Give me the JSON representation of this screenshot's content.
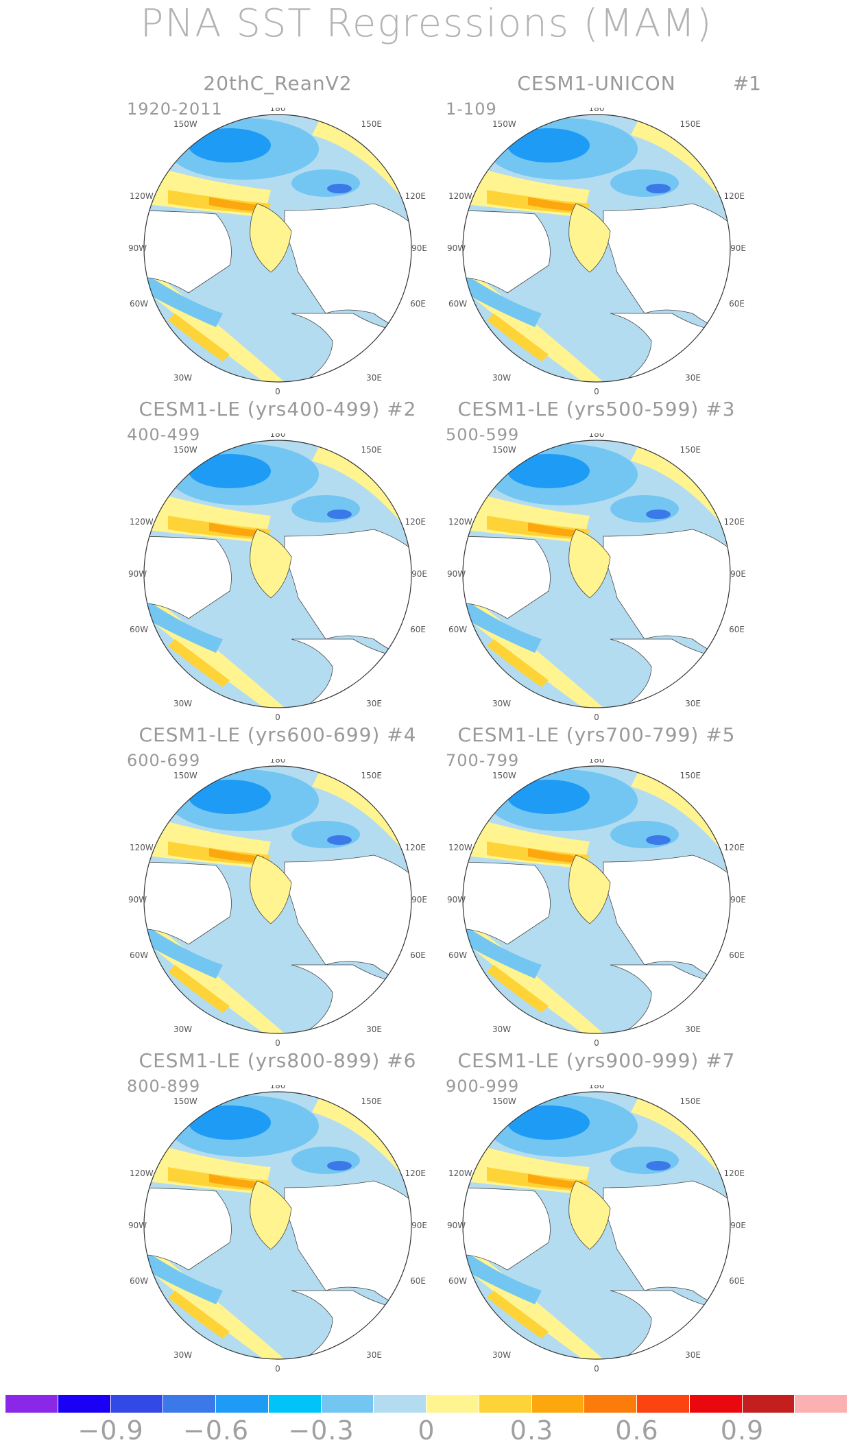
{
  "title": "PNA SST Regressions (MAM)",
  "panels": [
    {
      "title": "20thC_ReanV2",
      "years": "1920-2011",
      "num": ""
    },
    {
      "title": "CESM1-UNICON",
      "years": "1-109",
      "num": "#1"
    },
    {
      "title": "CESM1-LE (yrs400-499) #2",
      "years": "400-499",
      "num": ""
    },
    {
      "title": "CESM1-LE (yrs500-599) #3",
      "years": "500-599",
      "num": ""
    },
    {
      "title": "CESM1-LE (yrs600-699) #4",
      "years": "600-699",
      "num": ""
    },
    {
      "title": "CESM1-LE (yrs700-799) #5",
      "years": "700-799",
      "num": ""
    },
    {
      "title": "CESM1-LE (yrs800-899) #6",
      "years": "800-899",
      "num": ""
    },
    {
      "title": "CESM1-LE (yrs900-999) #7",
      "years": "900-999",
      "num": ""
    }
  ],
  "map_labels": {
    "top": "180",
    "bottom": "0",
    "left": "90W",
    "right": "90E",
    "upper_left_outer": "120W",
    "upper_left_inner": "150W",
    "upper_right_inner": "150E",
    "upper_right_outer": "120E",
    "lower_left_outer": "60W",
    "lower_left_inner": "30W",
    "lower_right_inner": "30E",
    "lower_right_outer": "60E"
  },
  "colorbar": {
    "colors": [
      "#8b28e8",
      "#1a00f5",
      "#3249e8",
      "#3b78e8",
      "#1e9cf5",
      "#00c3f8",
      "#73c6f2",
      "#b4dcf1",
      "#fff48f",
      "#fdd337",
      "#fca70d",
      "#fc7c0b",
      "#fc4411",
      "#e9080d",
      "#c41e1e",
      "#fbb1b1"
    ],
    "labels": [
      "−0.9",
      "−0.6",
      "−0.3",
      "0",
      "0.3",
      "0.6",
      "0.9"
    ]
  }
}
